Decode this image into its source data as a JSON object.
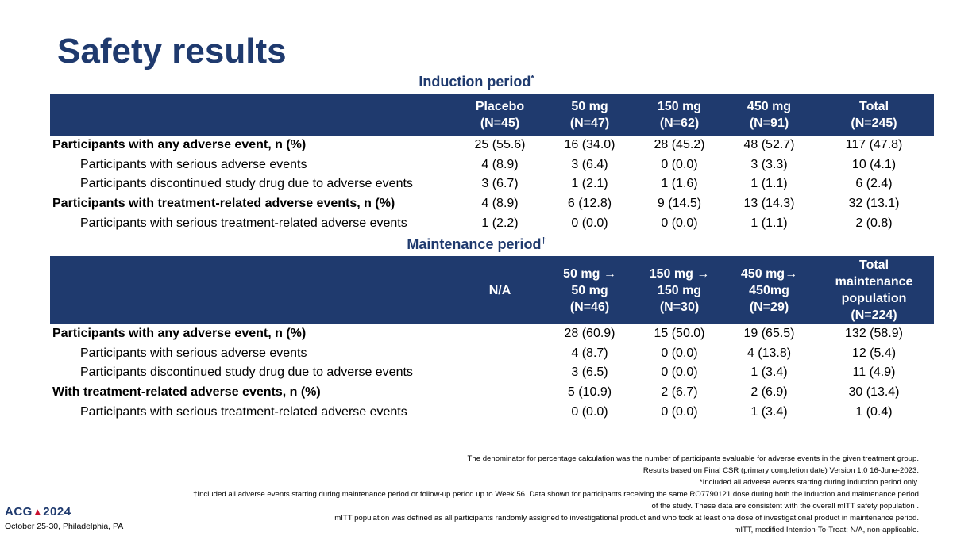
{
  "title": "Safety results",
  "induction": {
    "title": "Induction period",
    "title_mark": "*",
    "headers": [
      {
        "line1": "Placebo",
        "line2": "(N=45)"
      },
      {
        "line1": "50 mg",
        "line2": "(N=47)"
      },
      {
        "line1": "150 mg",
        "line2": "(N=62)"
      },
      {
        "line1": "450 mg",
        "line2": "(N=91)"
      },
      {
        "line1": "Total",
        "line2": "(N=245)"
      }
    ],
    "rows": [
      {
        "label": "Participants with any adverse event, n (%)",
        "values": [
          "25 (55.6)",
          "16 (34.0)",
          "28 (45.2)",
          "48 (52.7)",
          "117 (47.8)"
        ]
      },
      {
        "label": "Participants with serious adverse events",
        "values": [
          "4 (8.9)",
          "3 (6.4)",
          "0 (0.0)",
          "3 (3.3)",
          "10 (4.1)"
        ]
      },
      {
        "label": "Participants discontinued study drug due to adverse events",
        "values": [
          "3 (6.7)",
          "1 (2.1)",
          "1 (1.6)",
          "1 (1.1)",
          "6 (2.4)"
        ]
      },
      {
        "label": "Participants with treatment-related adverse events, n (%)",
        "values": [
          "4 (8.9)",
          "6 (12.8)",
          "9 (14.5)",
          "13 (14.3)",
          "32 (13.1)"
        ]
      },
      {
        "label": "Participants with serious treatment-related adverse events",
        "values": [
          "1 (2.2)",
          "0 (0.0)",
          "0 (0.0)",
          "1 (1.1)",
          "2 (0.8)"
        ]
      }
    ]
  },
  "maintenance": {
    "title": "Maintenance period",
    "title_mark": "†",
    "headers": [
      {
        "line1": "N/A"
      },
      {
        "line1": "50 mg →",
        "line2": "50 mg",
        "line3": "(N=46)"
      },
      {
        "line1": "150 mg →",
        "line2": "150 mg",
        "line3": "(N=30)"
      },
      {
        "line1": "450 mg→",
        "line2": "450mg",
        "line3": "(N=29)"
      },
      {
        "line1": "Total",
        "line2": "maintenance",
        "line3": "population",
        "line4": "(N=224)"
      }
    ],
    "rows": [
      {
        "label": "Participants with any adverse event, n (%)",
        "values": [
          "",
          "28 (60.9)",
          "15 (50.0)",
          "19 (65.5)",
          "132 (58.9)"
        ]
      },
      {
        "label": "Participants with serious adverse events",
        "values": [
          "",
          "4 (8.7)",
          "0 (0.0)",
          "4 (13.8)",
          "12 (5.4)"
        ]
      },
      {
        "label": "Participants discontinued study drug due to adverse events",
        "values": [
          "",
          "3 (6.5)",
          "0 (0.0)",
          "1 (3.4)",
          "11 (4.9)"
        ]
      },
      {
        "label": "With treatment-related adverse events, n (%)",
        "values": [
          "",
          "5 (10.9)",
          "2 (6.7)",
          "2 (6.9)",
          "30 (13.4)"
        ]
      },
      {
        "label": "Participants with serious treatment-related adverse events",
        "values": [
          "",
          "0 (0.0)",
          "0 (0.0)",
          "1 (3.4)",
          "1 (0.4)"
        ]
      }
    ]
  },
  "footnotes": [
    "The denominator for percentage calculation was the number of participants evaluable for adverse events in the given treatment group.",
    "Results based on Final CSR (primary completion date) Version 1.0 16-June-2023.",
    "*Included all adverse events starting during induction period only.",
    "†Included all adverse events starting during maintenance period or follow-up period up to Week 56. Data shown for participants receiving the same RO7790121 dose during both the induction and maintenance period",
    "of the study. These data are consistent with the overall mITT safety population .",
    "mITT population was defined as all participants randomly assigned to investigational product and who took at least one dose of investigational product in maintenance period.",
    "mITT, modified Intention-To-Treat; N/A, non-applicable."
  ],
  "logo": {
    "prefix": "ACG",
    "year": "2024"
  },
  "event_date": "October 25-30, Philadelphia, PA",
  "colors": {
    "brand": "#1f3a6e",
    "accent": "#c8102e"
  }
}
